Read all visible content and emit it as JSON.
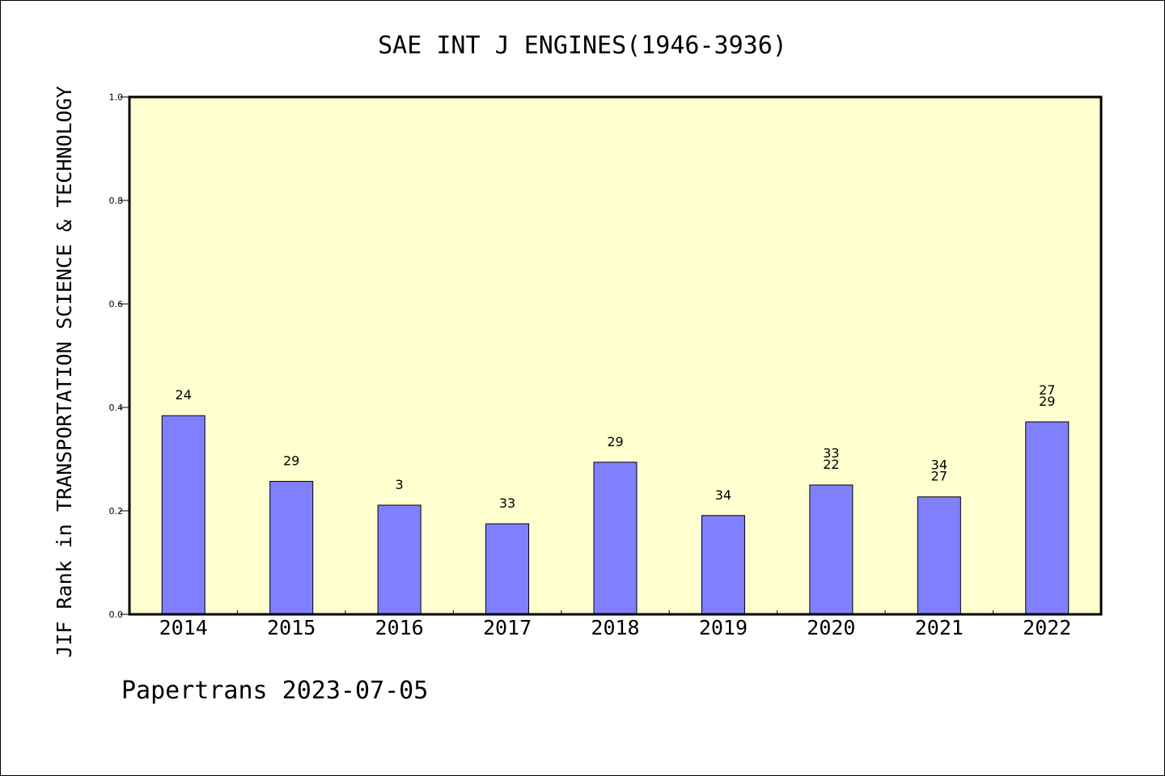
{
  "chart_data": {
    "type": "bar",
    "title": "SAE INT J ENGINES(1946-3936)",
    "xlabel": "",
    "ylabel": "JIF Rank in TRANSPORTATION SCIENCE & TECHNOLOGY",
    "ylim": [
      0,
      1.0
    ],
    "yticks": [
      "0.0",
      "0.2",
      "0.4",
      "0.6",
      "0.8",
      "1.0"
    ],
    "grid": false,
    "categories": [
      "2014",
      "2015",
      "2016",
      "2017",
      "2018",
      "2019",
      "2020",
      "2021",
      "2022"
    ],
    "values": [
      0.384,
      0.257,
      0.211,
      0.175,
      0.294,
      0.191,
      0.25,
      0.227,
      0.372
    ],
    "bar_labels": [
      [
        "24"
      ],
      [
        "29"
      ],
      [
        "3"
      ],
      [
        "33"
      ],
      [
        "29"
      ],
      [
        "34"
      ],
      [
        "33",
        "22"
      ],
      [
        "34",
        "27"
      ],
      [
        "27",
        "29"
      ]
    ],
    "bar_color": "#8080ff",
    "plot_background": "#ffffd0"
  },
  "footer": "Papertrans 2023-07-05"
}
